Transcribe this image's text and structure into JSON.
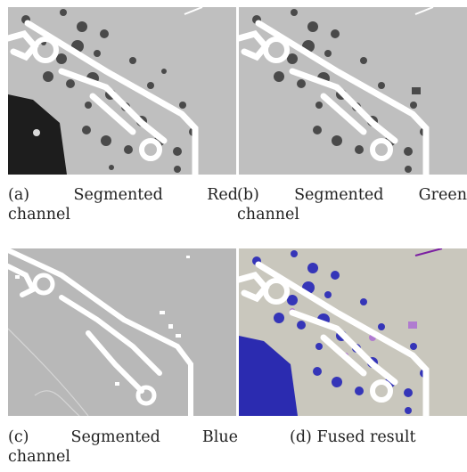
{
  "figure": {
    "panels": [
      {
        "id": "a",
        "label": "(a)",
        "words": [
          "Segmented",
          "Red"
        ],
        "line2": "channel",
        "colors": {
          "bg": "#bfbfbf",
          "dark": "#1d1d1d",
          "mid": "#505050",
          "road": "#ffffff"
        }
      },
      {
        "id": "b",
        "label": "(b)",
        "words": [
          "Segmented",
          "Green"
        ],
        "line2": "channel",
        "colors": {
          "bg": "#bfbfbf",
          "dark": "#1d1d1d",
          "mid": "#505050",
          "road": "#ffffff"
        }
      },
      {
        "id": "c",
        "label": "(c)",
        "words": [
          "Segmented",
          "Blue"
        ],
        "line2": "channel",
        "colors": {
          "bg": "#b8b8b8",
          "dark": "#b8b8b8",
          "mid": "#9c9c9c",
          "road": "#ffffff"
        }
      },
      {
        "id": "d",
        "label": "(d)",
        "caption": "Fused result",
        "colors": {
          "bg": "#c9c7bd",
          "dark": "#2b2bb0",
          "mid": "#3535b8",
          "road": "#ffffff",
          "accent": "#b07bd0"
        }
      }
    ]
  }
}
